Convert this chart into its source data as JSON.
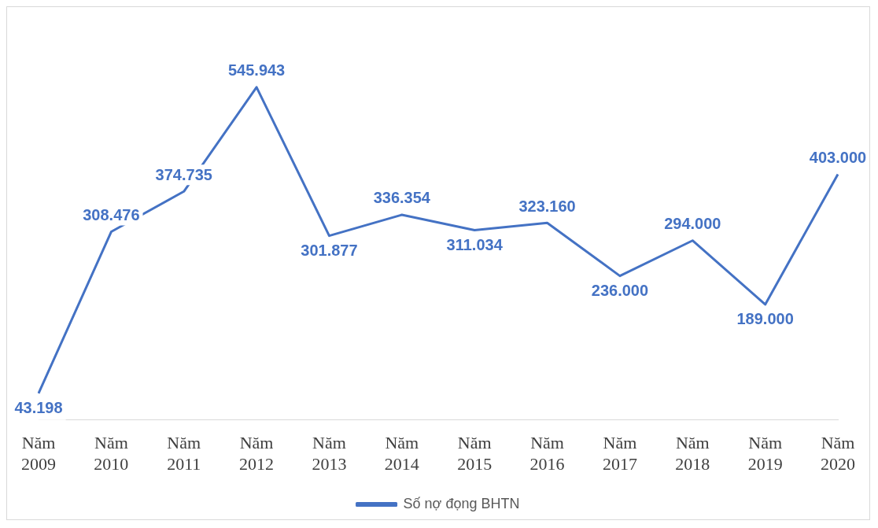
{
  "chart_data": {
    "type": "line",
    "categories": [
      "Năm 2009",
      "Năm 2010",
      "Năm 2011",
      "Năm 2012",
      "Năm 2013",
      "Năm 2014",
      "Năm 2015",
      "Năm 2016",
      "Năm 2017",
      "Năm 2018",
      "Năm 2019",
      "Năm 2020"
    ],
    "series": [
      {
        "name": "Số nợ đọng BHTN",
        "color": "#4472c4",
        "values": [
          43198,
          308476,
          374735,
          545943,
          301877,
          336354,
          311034,
          323160,
          236000,
          294000,
          189000,
          403000
        ],
        "value_labels": [
          "43.198",
          "308.476",
          "374.735",
          "545.943",
          "301.877",
          "336.354",
          "311.034",
          "323.160",
          "236.000",
          "294.000",
          "189.000",
          "403.000"
        ]
      }
    ],
    "grid": false,
    "legend": "bottom",
    "marker": "none",
    "line_style": "solid",
    "tick_labels": "x"
  }
}
